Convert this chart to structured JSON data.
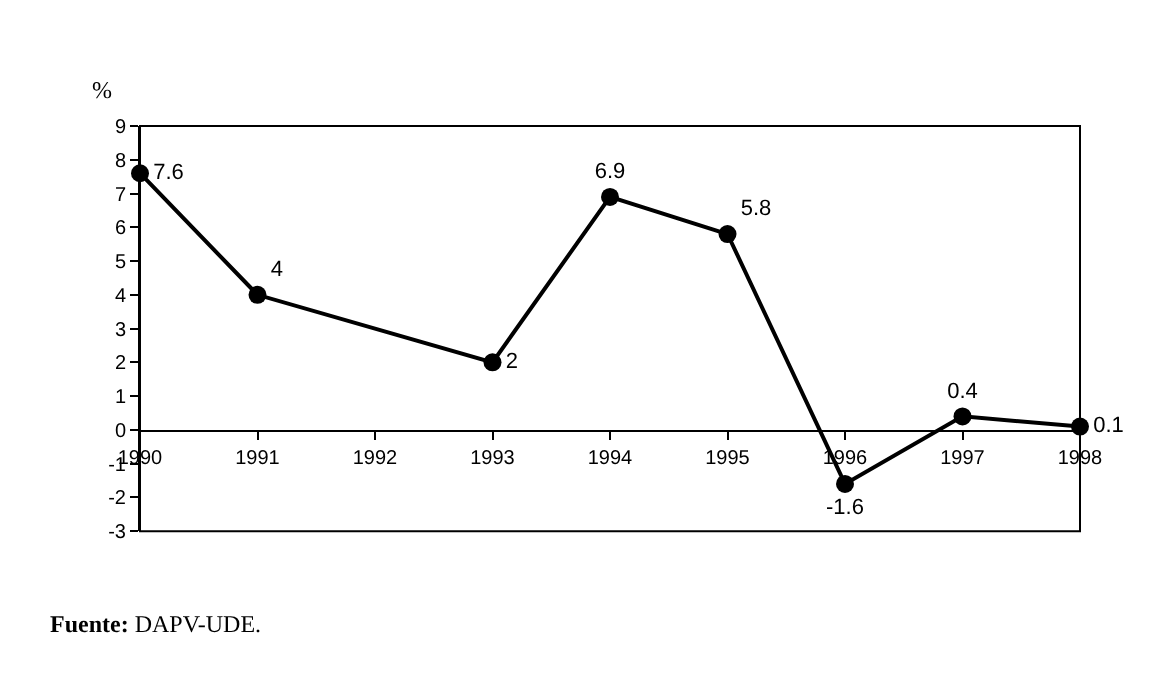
{
  "chart_data": {
    "type": "line",
    "ylabel": "%",
    "x": [
      1990,
      1991,
      1993,
      1994,
      1995,
      1996,
      1997,
      1998
    ],
    "series": [
      {
        "color": "#000000",
        "values": [
          7.6,
          4,
          2,
          6.9,
          5.8,
          -1.6,
          0.4,
          0.1
        ]
      }
    ],
    "xlim": [
      1990,
      1998
    ],
    "xticks": [
      1990,
      1991,
      1992,
      1993,
      1994,
      1995,
      1996,
      1997,
      1998
    ],
    "ylim": [
      -3,
      9
    ],
    "yticks": [
      -3,
      -2,
      -1,
      0,
      1,
      2,
      3,
      4,
      5,
      6,
      7,
      8,
      9
    ],
    "legend": false,
    "marker": "circle",
    "line_style": "solid",
    "data_labels": true,
    "annotations": [
      "Fuente: DAPV-UDE."
    ]
  }
}
